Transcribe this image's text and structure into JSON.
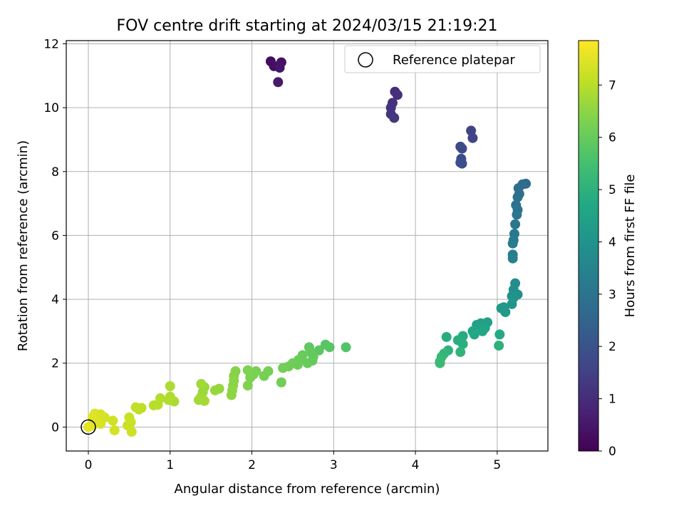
{
  "chart_data": {
    "type": "scatter",
    "title": "FOV centre drift starting at 2024/03/15 21:19:21",
    "xlabel": "Angular distance from reference (arcmin)",
    "ylabel": "Rotation from reference (arcmin)",
    "xlim": [
      -0.27,
      5.62
    ],
    "ylim": [
      -0.75,
      12.1
    ],
    "xticks": [
      0,
      1,
      2,
      3,
      4,
      5
    ],
    "yticks": [
      0,
      2,
      4,
      6,
      8,
      10,
      12
    ],
    "grid": true,
    "legend": {
      "placement": "top-right",
      "entries": [
        "Reference platepar"
      ]
    },
    "colorbar": {
      "label": "Hours from first FF file",
      "range": [
        0,
        7.85
      ],
      "ticks": [
        0,
        1,
        2,
        3,
        4,
        5,
        6,
        7
      ],
      "colormap": "viridis"
    },
    "reference_point": {
      "x": 0,
      "y": 0
    },
    "series": [
      {
        "name": "Hours from first FF file",
        "points": [
          [
            2.23,
            11.45,
            0.25
          ],
          [
            2.27,
            11.3,
            0.3
          ],
          [
            2.36,
            11.42,
            0.35
          ],
          [
            2.34,
            11.25,
            0.45
          ],
          [
            2.32,
            10.8,
            0.55
          ],
          [
            3.75,
            10.5,
            1.0
          ],
          [
            3.78,
            10.4,
            1.05
          ],
          [
            3.72,
            10.15,
            1.1
          ],
          [
            3.7,
            10.0,
            1.15
          ],
          [
            3.7,
            9.8,
            1.2
          ],
          [
            3.74,
            9.68,
            1.25
          ],
          [
            4.68,
            9.28,
            1.55
          ],
          [
            4.7,
            9.05,
            1.6
          ],
          [
            4.55,
            8.78,
            1.7
          ],
          [
            4.57,
            8.72,
            1.75
          ],
          [
            4.56,
            8.4,
            1.8
          ],
          [
            4.55,
            8.28,
            1.85
          ],
          [
            4.57,
            8.25,
            1.9
          ],
          [
            5.35,
            7.62,
            2.7
          ],
          [
            5.31,
            7.6,
            2.75
          ],
          [
            5.26,
            7.48,
            2.8
          ],
          [
            5.27,
            7.3,
            2.85
          ],
          [
            5.25,
            7.2,
            2.9
          ],
          [
            5.23,
            6.95,
            2.95
          ],
          [
            5.25,
            6.8,
            3.0
          ],
          [
            5.24,
            6.65,
            3.05
          ],
          [
            5.22,
            6.35,
            3.1
          ],
          [
            5.21,
            6.05,
            3.15
          ],
          [
            5.2,
            5.85,
            3.2
          ],
          [
            5.19,
            5.75,
            3.25
          ],
          [
            5.19,
            5.4,
            3.3
          ],
          [
            5.19,
            5.28,
            3.35
          ],
          [
            5.22,
            4.5,
            3.8
          ],
          [
            5.2,
            4.3,
            3.85
          ],
          [
            5.25,
            4.15,
            3.9
          ],
          [
            5.18,
            4.1,
            3.95
          ],
          [
            5.2,
            4.05,
            4.0
          ],
          [
            5.18,
            3.85,
            4.05
          ],
          [
            5.08,
            3.75,
            4.1
          ],
          [
            5.05,
            3.72,
            4.15
          ],
          [
            5.1,
            3.6,
            4.2
          ],
          [
            4.88,
            3.28,
            4.4
          ],
          [
            4.8,
            3.25,
            4.45
          ],
          [
            4.75,
            3.2,
            4.5
          ],
          [
            4.85,
            3.1,
            4.55
          ],
          [
            4.7,
            3.0,
            4.6
          ],
          [
            4.82,
            3.0,
            4.65
          ],
          [
            4.72,
            2.9,
            4.7
          ],
          [
            5.03,
            2.9,
            4.75
          ],
          [
            4.58,
            2.85,
            4.8
          ],
          [
            4.38,
            2.82,
            4.85
          ],
          [
            4.52,
            2.72,
            4.9
          ],
          [
            4.58,
            2.6,
            4.95
          ],
          [
            5.02,
            2.55,
            5.0
          ],
          [
            4.4,
            2.4,
            5.05
          ],
          [
            4.55,
            2.35,
            5.1
          ],
          [
            4.35,
            2.3,
            5.15
          ],
          [
            4.32,
            2.2,
            5.2
          ],
          [
            4.3,
            2.05,
            5.25
          ],
          [
            4.3,
            2.0,
            5.3
          ],
          [
            3.15,
            2.5,
            5.7
          ],
          [
            2.95,
            2.5,
            5.75
          ],
          [
            2.9,
            2.58,
            5.8
          ],
          [
            2.82,
            2.4,
            5.85
          ],
          [
            2.7,
            2.5,
            5.9
          ],
          [
            2.72,
            2.35,
            5.92
          ],
          [
            2.75,
            2.2,
            5.95
          ],
          [
            2.74,
            2.08,
            5.97
          ],
          [
            2.68,
            2.0,
            6.0
          ],
          [
            2.62,
            2.25,
            6.02
          ],
          [
            2.57,
            2.1,
            6.05
          ],
          [
            2.56,
            1.95,
            6.07
          ],
          [
            2.5,
            2.0,
            6.1
          ],
          [
            2.45,
            1.9,
            6.12
          ],
          [
            2.38,
            1.85,
            6.15
          ],
          [
            2.36,
            1.4,
            6.17
          ],
          [
            2.2,
            1.75,
            6.2
          ],
          [
            2.15,
            1.6,
            6.22
          ],
          [
            2.05,
            1.75,
            6.25
          ],
          [
            2.02,
            1.65,
            6.27
          ],
          [
            1.98,
            1.55,
            6.3
          ],
          [
            1.95,
            1.78,
            6.32
          ],
          [
            1.95,
            1.3,
            6.35
          ],
          [
            1.8,
            1.75,
            6.4
          ],
          [
            1.78,
            1.6,
            6.42
          ],
          [
            1.78,
            1.45,
            6.45
          ],
          [
            1.77,
            1.3,
            6.47
          ],
          [
            1.76,
            1.15,
            6.5
          ],
          [
            1.75,
            1.0,
            6.52
          ],
          [
            1.6,
            1.2,
            6.6
          ],
          [
            1.55,
            1.15,
            6.62
          ],
          [
            1.42,
            1.25,
            6.65
          ],
          [
            1.4,
            1.1,
            6.67
          ],
          [
            1.38,
            0.95,
            6.7
          ],
          [
            1.38,
            1.35,
            6.72
          ],
          [
            1.35,
            0.85,
            6.75
          ],
          [
            1.42,
            0.82,
            6.77
          ],
          [
            1.05,
            0.8,
            6.85
          ],
          [
            1.0,
            1.28,
            6.87
          ],
          [
            1.0,
            0.95,
            6.9
          ],
          [
            0.98,
            0.85,
            6.92
          ],
          [
            0.88,
            0.9,
            6.95
          ],
          [
            0.85,
            0.7,
            6.97
          ],
          [
            0.8,
            0.68,
            7.0
          ],
          [
            0.65,
            0.6,
            7.05
          ],
          [
            0.62,
            0.55,
            7.07
          ],
          [
            0.58,
            0.62,
            7.1
          ],
          [
            0.5,
            0.3,
            7.2
          ],
          [
            0.52,
            0.15,
            7.22
          ],
          [
            0.48,
            0.05,
            7.25
          ],
          [
            0.53,
            -0.15,
            7.27
          ],
          [
            0.3,
            0.2,
            7.3
          ],
          [
            0.32,
            -0.1,
            7.32
          ],
          [
            0.2,
            0.3,
            7.35
          ],
          [
            0.15,
            0.4,
            7.37
          ],
          [
            0.15,
            0.1,
            7.4
          ],
          [
            0.08,
            0.42,
            7.42
          ],
          [
            0.1,
            0.2,
            7.45
          ],
          [
            0.05,
            0.3,
            7.47
          ],
          [
            0.05,
            0.05,
            7.5
          ],
          [
            0.0,
            0.0,
            7.55
          ]
        ]
      }
    ]
  }
}
